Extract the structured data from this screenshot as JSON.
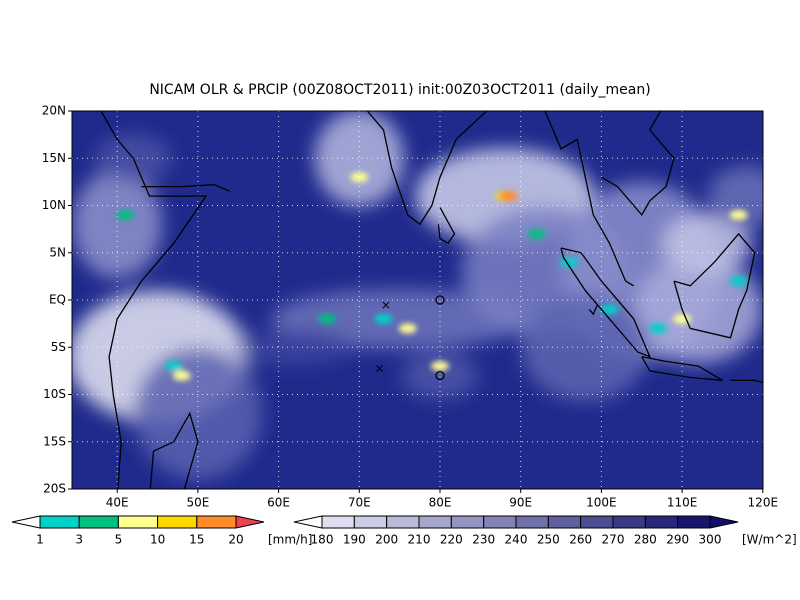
{
  "title": "NICAM OLR & PRCIP (00Z08OCT2011) init:00Z03OCT2011 (daily_mean)",
  "map": {
    "lat_labels": [
      "20N",
      "15N",
      "10N",
      "5N",
      "EQ",
      "5S",
      "10S",
      "15S",
      "20S"
    ],
    "lon_labels": [
      "40E",
      "50E",
      "60E",
      "70E",
      "80E",
      "90E",
      "100E",
      "110E",
      "120E"
    ]
  },
  "precip_colorbar": {
    "labels": [
      "1",
      "3",
      "5",
      "10",
      "15",
      "20"
    ],
    "unit": "[mm/h]"
  },
  "olr_colorbar": {
    "labels": [
      "180",
      "190",
      "200",
      "210",
      "220",
      "230",
      "240",
      "250",
      "260",
      "270",
      "280",
      "290",
      "300"
    ],
    "unit": "[W/m^2]"
  }
}
